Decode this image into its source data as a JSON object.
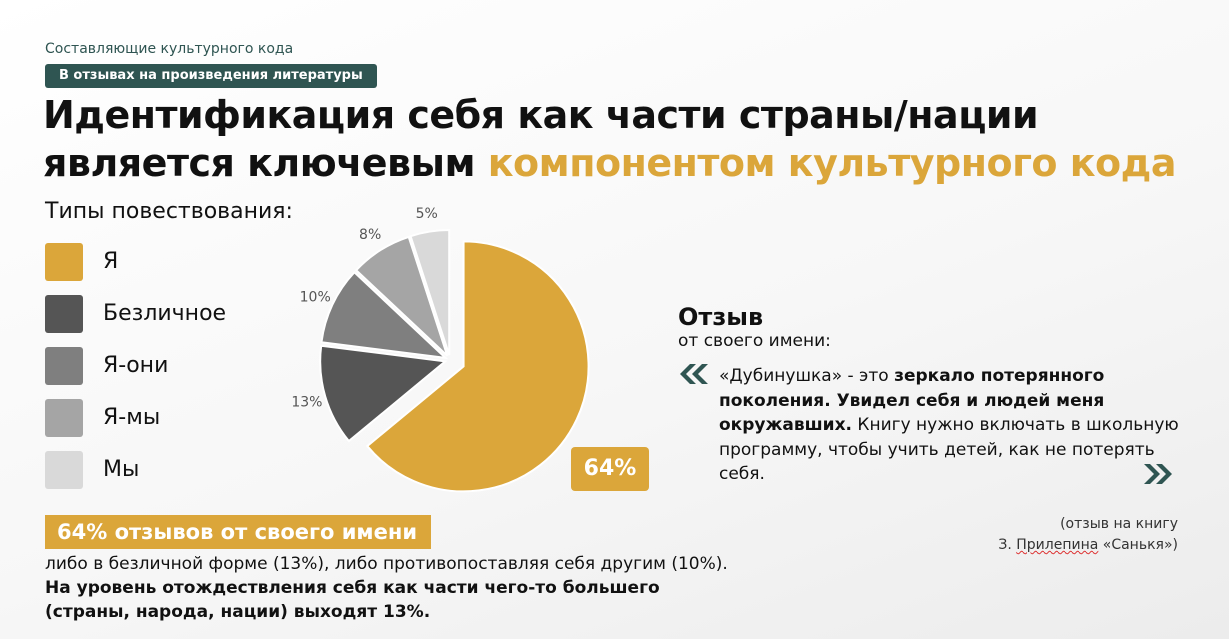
{
  "header": {
    "subtitle": "Составляющие культурного кода",
    "chip": "В отзывах на произведения литературы",
    "title_line1": "Идентификация себя как части страны/нации",
    "title_line2_plain": "является ключевым ",
    "title_line2_accent": "компонентом культурного кода"
  },
  "legend": {
    "title": "Типы повествования:",
    "items": [
      {
        "label": "Я",
        "color": "#dba63a"
      },
      {
        "label": "Безличное",
        "color": "#555555"
      },
      {
        "label": "Я-они",
        "color": "#7f7f7f"
      },
      {
        "label": "Я-мы",
        "color": "#a5a5a5"
      },
      {
        "label": "Мы",
        "color": "#d9d9d9"
      }
    ]
  },
  "chart_data": {
    "type": "pie",
    "slices": [
      {
        "name": "Я",
        "value": 64,
        "label": "64%",
        "color": "#dba63a",
        "exploded": true
      },
      {
        "name": "Безличное",
        "value": 13,
        "label": "13%",
        "color": "#555555"
      },
      {
        "name": "Я-они",
        "value": 10,
        "label": "10%",
        "color": "#7f7f7f"
      },
      {
        "name": "Я-мы",
        "value": 8,
        "label": "8%",
        "color": "#a5a5a5"
      },
      {
        "name": "Мы",
        "value": 5,
        "label": "5%",
        "color": "#d9d9d9"
      }
    ]
  },
  "badge": "64%",
  "review": {
    "title": "Отзыв",
    "subtitle": "от своего имени:",
    "quote_plain1": "«Дубинушка» - это ",
    "quote_bold": "зеркало потерянного поколения. Увидел себя и людей меня окружавших.",
    "quote_plain2": " Книгу нужно включать в школьную программу, чтобы учить детей, как не потерять себя.",
    "source_line1": "(отзыв на книгу",
    "source_line2_a": "З. ",
    "source_line2_b": "Прилепина",
    "source_line2_c": " «Санькя»)"
  },
  "bottom": {
    "highlight": "64% отзывов от своего имени",
    "text_plain": "либо в безличной форме (13%), либо противопоставляя себя другим (10%). ",
    "text_bold": "На уровень отождествления себя как части чего-то большего (страны, народа, нации) выходят 13%."
  }
}
